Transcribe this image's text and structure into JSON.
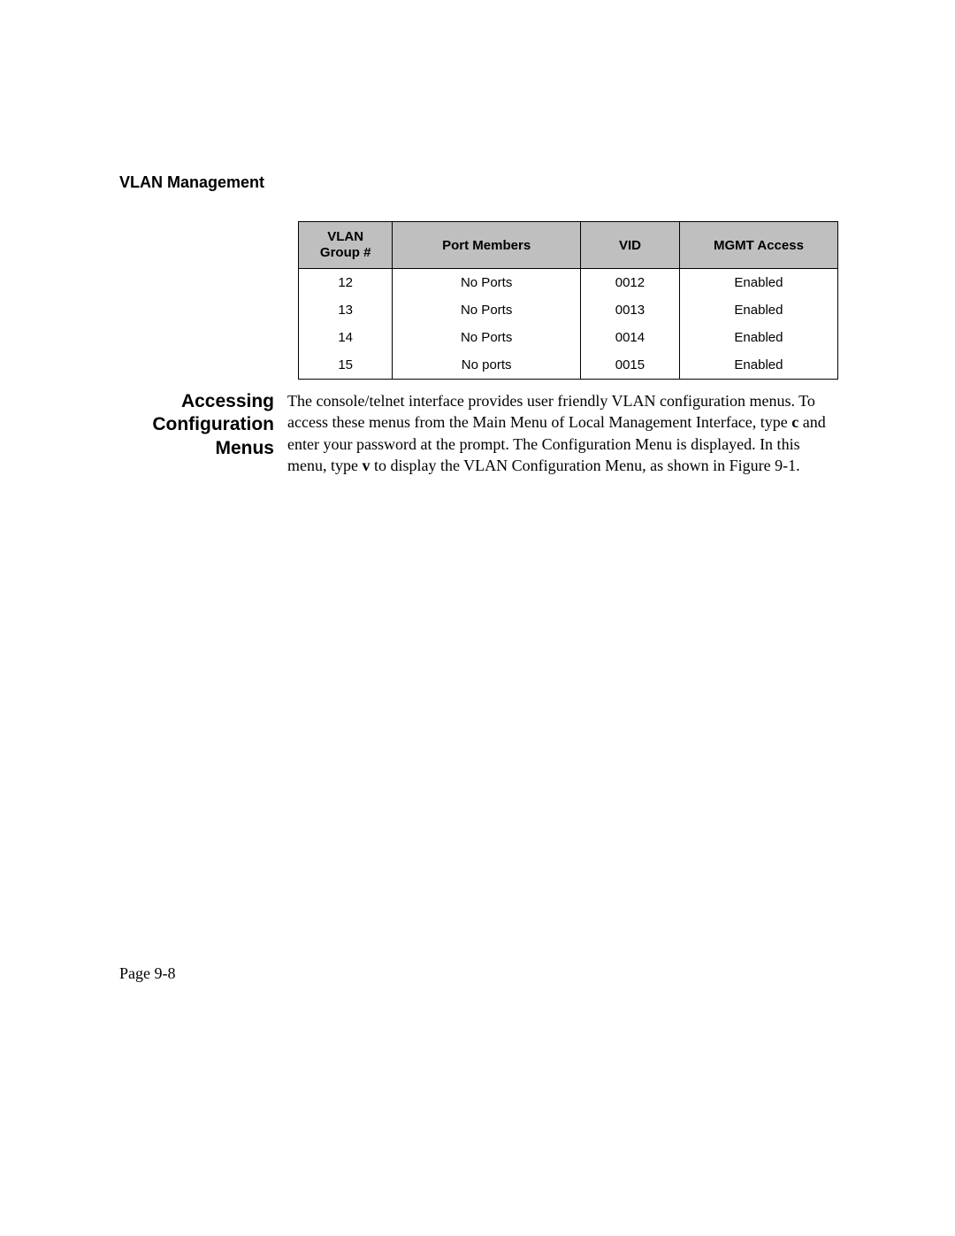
{
  "header": {
    "title": "VLAN Management"
  },
  "table": {
    "columns": [
      {
        "lines": [
          "VLAN",
          "Group #"
        ],
        "class": "col-group"
      },
      {
        "lines": [
          "Port Members"
        ],
        "class": "col-port"
      },
      {
        "lines": [
          "VID"
        ],
        "class": "col-vid"
      },
      {
        "lines": [
          "MGMT Access"
        ],
        "class": "col-mgmt"
      }
    ],
    "rows": [
      [
        "12",
        "No Ports",
        "0012",
        "Enabled"
      ],
      [
        "13",
        "No Ports",
        "0013",
        "Enabled"
      ],
      [
        "14",
        "No Ports",
        "0014",
        "Enabled"
      ],
      [
        "15",
        "No ports",
        "0015",
        "Enabled"
      ]
    ],
    "header_bg": "#bfbfbf",
    "border_color": "#000000",
    "font_size_header": 15,
    "font_size_cell": 15
  },
  "section": {
    "heading_lines": [
      "Accessing",
      "Configuration",
      "Menus"
    ],
    "body_pre1": "The console/telnet interface provides user friendly VLAN configuration menus. To access these menus from the Main Menu of Local Management Interface, type ",
    "key1": "c",
    "body_mid": " and enter your password at the prompt. The Configuration Menu is displayed. In this menu, type ",
    "key2": "v",
    "body_post": " to display the VLAN Configuration Menu, as shown in Figure 9-1."
  },
  "footer": {
    "page_label": "Page 9-8"
  },
  "colors": {
    "background": "#ffffff",
    "text": "#000000"
  }
}
